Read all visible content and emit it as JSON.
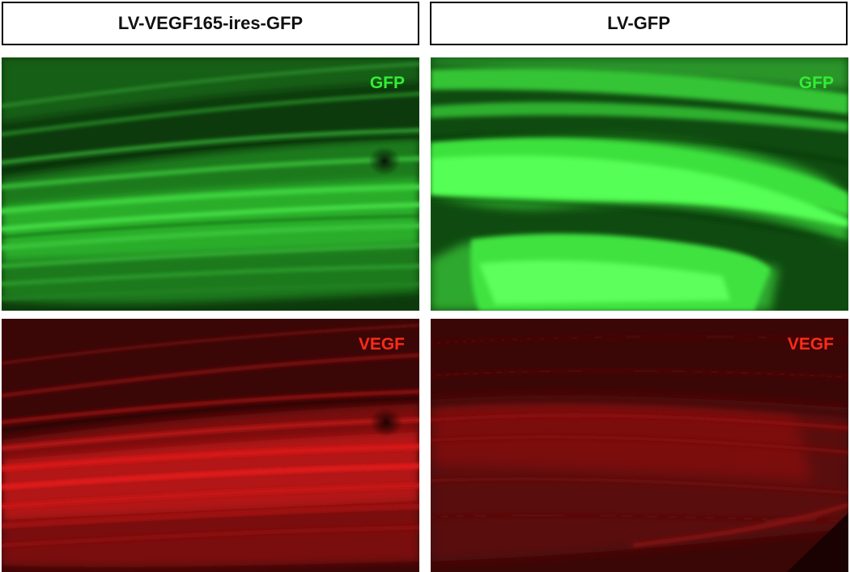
{
  "columns": [
    {
      "header": "LV-VEGF165-ires-GFP"
    },
    {
      "header": "LV-GFP"
    }
  ],
  "channels": {
    "top": {
      "label": "GFP",
      "color": "#33ee33"
    },
    "bottom": {
      "label": "VEGF",
      "color": "#ff2a1a"
    }
  }
}
